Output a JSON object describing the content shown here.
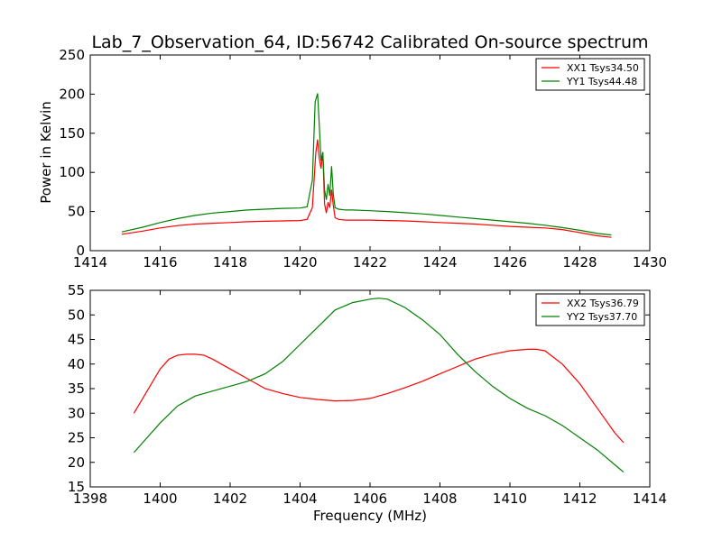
{
  "chart_data": [
    {
      "type": "line",
      "title": "Lab_7_Observation_64, ID:56742 Calibrated On-source spectrum",
      "xlabel": "",
      "ylabel": "Power in Kelvin",
      "xlim": [
        1414,
        1430
      ],
      "ylim": [
        0,
        250
      ],
      "xticks": [
        1414,
        1416,
        1418,
        1420,
        1422,
        1424,
        1426,
        1428,
        1430
      ],
      "yticks": [
        0,
        50,
        100,
        150,
        200,
        250
      ],
      "grid": false,
      "legend_position": "top-right",
      "series": [
        {
          "name": "XX1 Tsys34.50",
          "color": "#ff0000",
          "x": [
            1414.9,
            1415.5,
            1416.0,
            1416.5,
            1417.0,
            1417.5,
            1418.0,
            1418.5,
            1419.0,
            1419.5,
            1420.0,
            1420.2,
            1420.35,
            1420.45,
            1420.5,
            1420.55,
            1420.6,
            1420.65,
            1420.7,
            1420.75,
            1420.8,
            1420.85,
            1420.9,
            1420.95,
            1421.0,
            1421.1,
            1421.3,
            1421.5,
            1422.0,
            1422.5,
            1423.0,
            1423.5,
            1424.0,
            1424.5,
            1425.0,
            1425.5,
            1426.0,
            1426.5,
            1427.0,
            1427.5,
            1428.0,
            1428.5,
            1428.9
          ],
          "y": [
            21,
            25,
            29,
            32,
            34,
            35,
            36,
            37,
            37.5,
            38,
            38.5,
            40,
            55,
            125,
            142,
            118,
            105,
            125,
            60,
            48,
            62,
            55,
            78,
            58,
            42,
            40,
            39,
            39,
            39,
            38.5,
            38,
            37,
            36,
            35,
            34,
            32.5,
            31,
            30,
            29,
            27,
            23,
            19,
            17
          ]
        },
        {
          "name": "YY1 Tsys44.48",
          "color": "#008000",
          "x": [
            1414.9,
            1415.5,
            1416.0,
            1416.5,
            1417.0,
            1417.5,
            1418.0,
            1418.5,
            1419.0,
            1419.5,
            1420.0,
            1420.2,
            1420.35,
            1420.43,
            1420.5,
            1420.55,
            1420.6,
            1420.65,
            1420.7,
            1420.75,
            1420.8,
            1420.85,
            1420.9,
            1420.95,
            1421.0,
            1421.1,
            1421.3,
            1421.5,
            1422.0,
            1422.5,
            1423.0,
            1423.5,
            1424.0,
            1424.5,
            1425.0,
            1425.5,
            1426.0,
            1426.5,
            1427.0,
            1427.5,
            1428.0,
            1428.5,
            1428.9
          ],
          "y": [
            24,
            30,
            36,
            41,
            45,
            48,
            50,
            52,
            53,
            54,
            54.5,
            56,
            90,
            190,
            201,
            160,
            115,
            126,
            78,
            65,
            85,
            70,
            108,
            72,
            55,
            53,
            52,
            52,
            51,
            50,
            48.5,
            47,
            45,
            43,
            41,
            39,
            37,
            35,
            32.5,
            29.5,
            26,
            22,
            20
          ]
        }
      ]
    },
    {
      "type": "line",
      "title": "",
      "xlabel": "Frequency (MHz)",
      "ylabel": "",
      "xlim": [
        1398,
        1414
      ],
      "ylim": [
        15,
        55
      ],
      "xticks": [
        1398,
        1400,
        1402,
        1404,
        1406,
        1408,
        1410,
        1412,
        1414
      ],
      "yticks": [
        15,
        20,
        25,
        30,
        35,
        40,
        45,
        50,
        55
      ],
      "grid": false,
      "legend_position": "top-right",
      "series": [
        {
          "name": "XX2 Tsys36.79",
          "color": "#ff0000",
          "x": [
            1399.25,
            1399.5,
            1399.75,
            1400.0,
            1400.25,
            1400.5,
            1400.75,
            1401.0,
            1401.25,
            1401.5,
            1401.75,
            1402.0,
            1402.5,
            1403.0,
            1403.5,
            1404.0,
            1404.5,
            1405.0,
            1405.5,
            1406.0,
            1406.5,
            1407.0,
            1407.5,
            1408.0,
            1408.5,
            1409.0,
            1409.5,
            1410.0,
            1410.5,
            1410.75,
            1411.0,
            1411.5,
            1412.0,
            1412.5,
            1413.0,
            1413.25
          ],
          "y": [
            30,
            33,
            36,
            39,
            41,
            41.8,
            42,
            42,
            41.8,
            41,
            40,
            39,
            37,
            35,
            34,
            33.2,
            32.8,
            32.5,
            32.6,
            33,
            34,
            35.2,
            36.5,
            38,
            39.5,
            41,
            42,
            42.7,
            43,
            43,
            42.7,
            40,
            36,
            31,
            26,
            24
          ]
        },
        {
          "name": "YY2 Tsys37.70",
          "color": "#008000",
          "x": [
            1399.25,
            1399.5,
            1400.0,
            1400.5,
            1401.0,
            1401.5,
            1402.0,
            1402.5,
            1403.0,
            1403.5,
            1404.0,
            1404.5,
            1405.0,
            1405.5,
            1406.0,
            1406.25,
            1406.5,
            1407.0,
            1407.5,
            1408.0,
            1408.5,
            1409.0,
            1409.5,
            1410.0,
            1410.5,
            1411.0,
            1411.5,
            1412.0,
            1412.5,
            1413.0,
            1413.25
          ],
          "y": [
            22,
            24,
            28,
            31.5,
            33.5,
            34.5,
            35.5,
            36.5,
            38,
            40.5,
            44,
            47.5,
            51,
            52.5,
            53.2,
            53.4,
            53.2,
            51.5,
            49,
            46,
            42,
            38.5,
            35.5,
            33,
            31,
            29.5,
            27.5,
            25,
            22.5,
            19.5,
            18
          ]
        }
      ]
    }
  ]
}
